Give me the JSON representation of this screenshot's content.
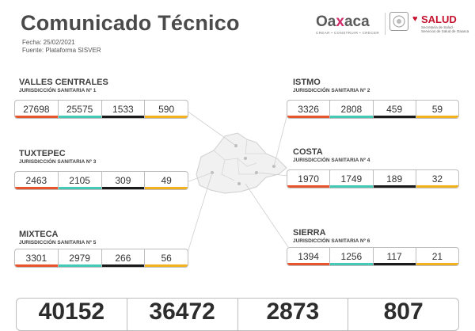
{
  "header": {
    "title": "Comunicado Técnico",
    "date": "Fecha: 25/02/2021",
    "source": "Fuente: Plataforma SISVER"
  },
  "logos": {
    "oaxaca_word_a": "Oa",
    "oaxaca_word_x": "x",
    "oaxaca_word_b": "aca",
    "oaxaca_tagline": "CREAR • CONSTRUIR • CRECER",
    "salud_word": "SALUD",
    "salud_sub": "Secretaría de Salud · Servicios de Salud de Oaxaca"
  },
  "colors": {
    "col1": "#e8542b",
    "col2": "#43c9b5",
    "col3": "#1a1a1a",
    "col4": "#f2b11d"
  },
  "regions": [
    {
      "name": "VALLES CENTRALES",
      "jurisdiction": "JURISDICCIÓN SANITARIA Nº 1",
      "values": [
        "27698",
        "25575",
        "1533",
        "590"
      ]
    },
    {
      "name": "ISTMO",
      "jurisdiction": "JURISDICCIÓN SANITARIA Nº 2",
      "values": [
        "3326",
        "2808",
        "459",
        "59"
      ]
    },
    {
      "name": "TUXTEPEC",
      "jurisdiction": "JURISDICCIÓN SANITARIA Nº 3",
      "values": [
        "2463",
        "2105",
        "309",
        "49"
      ]
    },
    {
      "name": "COSTA",
      "jurisdiction": "JURISDICCIÓN SANITARIA Nº 4",
      "values": [
        "1970",
        "1749",
        "189",
        "32"
      ]
    },
    {
      "name": "MIXTECA",
      "jurisdiction": "JURISDICCIÓN SANITARIA Nº 5",
      "values": [
        "3301",
        "2979",
        "266",
        "56"
      ]
    },
    {
      "name": "SIERRA",
      "jurisdiction": "JURISDICCIÓN SANITARIA Nº 6",
      "values": [
        "1394",
        "1256",
        "117",
        "21"
      ]
    }
  ],
  "totals": [
    "40152",
    "36472",
    "2873",
    "807"
  ]
}
